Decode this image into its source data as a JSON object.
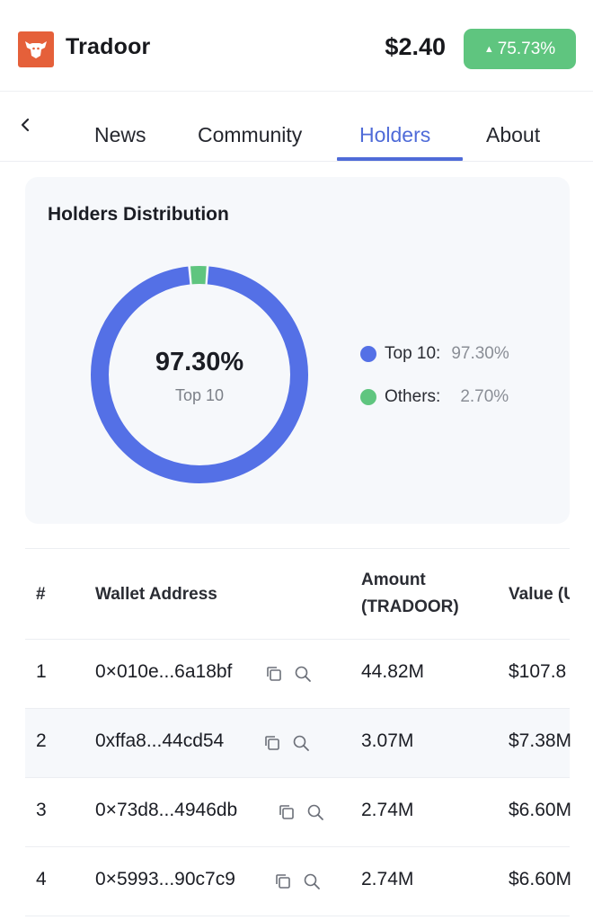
{
  "header": {
    "app_name": "Tradoor",
    "price": "$2.40",
    "change": "75.73%",
    "change_color": "#5fc57f",
    "logo_icon": "bull-head-logo",
    "brand_color": "#e5603a"
  },
  "tabs": [
    {
      "label": "News",
      "active": false
    },
    {
      "label": "Community",
      "active": false
    },
    {
      "label": "Holders",
      "active": true
    },
    {
      "label": "About",
      "active": false
    }
  ],
  "distribution": {
    "title": "Holders Distribution",
    "center_value": "97.30%",
    "center_label": "Top 10",
    "legend": [
      {
        "name": "Top 10:",
        "value": "97.30%",
        "color": "#5470e6"
      },
      {
        "name": "Others:",
        "value": "2.70%",
        "color": "#5fc57f"
      }
    ],
    "top10_fraction": 0.973
  },
  "table": {
    "headers": {
      "rank": "#",
      "wallet": "Wallet Address",
      "amount_line1": "Amount",
      "amount_line2": "(TRADOOR)",
      "value": "Value (U"
    },
    "rows": [
      {
        "rank": "1",
        "wallet": "0×010e...6a18bf",
        "amount": "44.82M",
        "value": "$107.8"
      },
      {
        "rank": "2",
        "wallet": "0xffa8...44cd54",
        "amount": "3.07M",
        "value": "$7.38M"
      },
      {
        "rank": "3",
        "wallet": "0×73d8...4946db",
        "amount": "2.74M",
        "value": "$6.60M"
      },
      {
        "rank": "4",
        "wallet": "0×5993...90c7c9",
        "amount": "2.74M",
        "value": "$6.60M"
      }
    ]
  }
}
